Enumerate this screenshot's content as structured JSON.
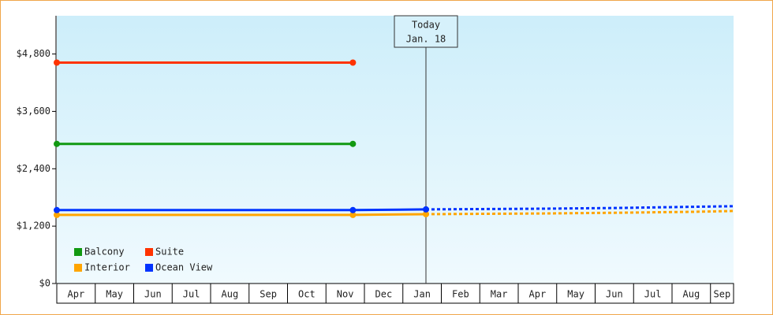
{
  "chart_data": {
    "type": "line",
    "categories": [
      "Apr",
      "May",
      "Jun",
      "Jul",
      "Aug",
      "Sep",
      "Oct",
      "Nov",
      "Dec",
      "Jan",
      "Feb",
      "Mar",
      "Apr",
      "May",
      "Jun",
      "Jul",
      "Aug",
      "Sep"
    ],
    "xlim": [
      0,
      17.6
    ],
    "ylim": [
      0,
      5600
    ],
    "yticks": [
      {
        "value": 0,
        "label": "$0"
      },
      {
        "value": 1200,
        "label": "$1,200"
      },
      {
        "value": 2400,
        "label": "$2,400"
      },
      {
        "value": 3600,
        "label": "$3,600"
      },
      {
        "value": 4800,
        "label": "$4,800"
      }
    ],
    "series": [
      {
        "name": "Balcony",
        "color": "#119911",
        "x": [
          0,
          7.7
        ],
        "values": [
          2920,
          2920
        ]
      },
      {
        "name": "Suite",
        "color": "#ff3300",
        "x": [
          0,
          7.7
        ],
        "values": [
          4620,
          4620
        ]
      },
      {
        "name": "Interior",
        "color": "#ffa500",
        "x": [
          0,
          7.7,
          9.6
        ],
        "values": [
          1435,
          1435,
          1450
        ],
        "projected": {
          "x": [
            9.6,
            12.7,
            14.6,
            16.6,
            17.6
          ],
          "values": [
            1450,
            1465,
            1480,
            1500,
            1517
          ]
        }
      },
      {
        "name": "Ocean View",
        "color": "#0033ff",
        "x": [
          0,
          7.7,
          9.6
        ],
        "values": [
          1535,
          1535,
          1550
        ],
        "projected": {
          "x": [
            9.6,
            12.7,
            14.6,
            16.6,
            17.6
          ],
          "values": [
            1550,
            1565,
            1580,
            1605,
            1617
          ]
        }
      }
    ],
    "today": {
      "x": 9.6,
      "label": "Today",
      "date": "Jan. 18"
    },
    "legend": "lower-left"
  }
}
